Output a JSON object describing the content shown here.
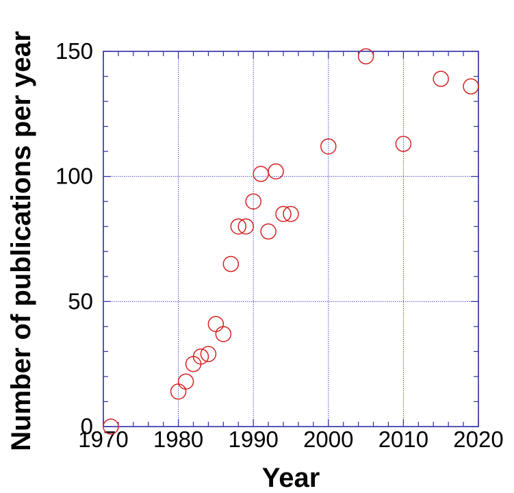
{
  "chart_data": {
    "type": "scatter",
    "title": "",
    "xlabel": "Year",
    "ylabel": "Number of publications per year",
    "xlim": [
      1970,
      2020
    ],
    "ylim": [
      0,
      150
    ],
    "xticks": [
      1970,
      1980,
      1990,
      2000,
      2010,
      2020
    ],
    "yticks": [
      0,
      50,
      100,
      150
    ],
    "x_tick_labels": [
      "1970",
      "1980",
      "1990",
      "2000",
      "2010",
      "2020"
    ],
    "y_tick_labels": [
      "0",
      "50",
      "100",
      "150"
    ],
    "grid": true,
    "marker": "open-circle",
    "colors": {
      "frame": "#2b2ba6",
      "grid": "#4a4ad0",
      "marker": "#d42020",
      "text": "#000000"
    },
    "series": [
      {
        "points": [
          {
            "x": 1971,
            "y": 0
          },
          {
            "x": 1980,
            "y": 14
          },
          {
            "x": 1981,
            "y": 18
          },
          {
            "x": 1982,
            "y": 25
          },
          {
            "x": 1983,
            "y": 28
          },
          {
            "x": 1984,
            "y": 29
          },
          {
            "x": 1985,
            "y": 41
          },
          {
            "x": 1986,
            "y": 37
          },
          {
            "x": 1987,
            "y": 65
          },
          {
            "x": 1988,
            "y": 80
          },
          {
            "x": 1989,
            "y": 80
          },
          {
            "x": 1990,
            "y": 90
          },
          {
            "x": 1991,
            "y": 101
          },
          {
            "x": 1992,
            "y": 78
          },
          {
            "x": 1993,
            "y": 102
          },
          {
            "x": 1994,
            "y": 85
          },
          {
            "x": 1995,
            "y": 85
          },
          {
            "x": 2000,
            "y": 112
          },
          {
            "x": 2005,
            "y": 148
          },
          {
            "x": 2010,
            "y": 113
          },
          {
            "x": 2015,
            "y": 139
          },
          {
            "x": 2019,
            "y": 136
          }
        ]
      }
    ]
  }
}
